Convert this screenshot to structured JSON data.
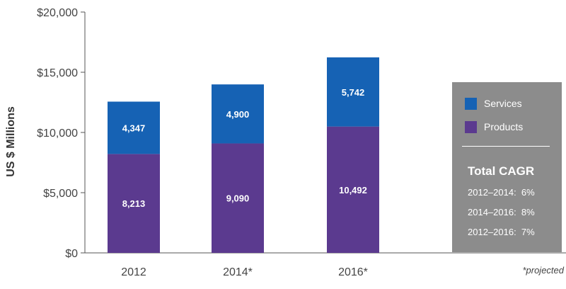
{
  "chart_data": {
    "type": "bar",
    "stacked": true,
    "categories": [
      "2012",
      "2014*",
      "2016*"
    ],
    "series": [
      {
        "name": "Products",
        "color": "#5b3a8f",
        "values": [
          8213,
          9090,
          10492
        ],
        "labels": [
          "8,213",
          "9,090",
          "10,492"
        ]
      },
      {
        "name": "Services",
        "color": "#1662b4",
        "values": [
          4347,
          4900,
          5742
        ],
        "labels": [
          "4,347",
          "4,900",
          "5,742"
        ]
      }
    ],
    "ylabel": "US $ Millions",
    "xlabel": "",
    "ylim": [
      0,
      20000
    ],
    "yticks": [
      0,
      5000,
      10000,
      15000,
      20000
    ],
    "ytick_labels": [
      "$0",
      "$5,000",
      "$10,000",
      "$15,000",
      "$20,000"
    ],
    "legend_position": "right",
    "grid": false,
    "footnote": "*projected"
  },
  "legend": {
    "items": [
      {
        "label": "Services",
        "color": "#1662b4"
      },
      {
        "label": "Products",
        "color": "#5b3a8f"
      }
    ],
    "cagr_title": "Total CAGR",
    "cagr_items": [
      "2012–2014:  6%",
      "2014–2016:  8%",
      "2012–2016:  7%"
    ]
  }
}
